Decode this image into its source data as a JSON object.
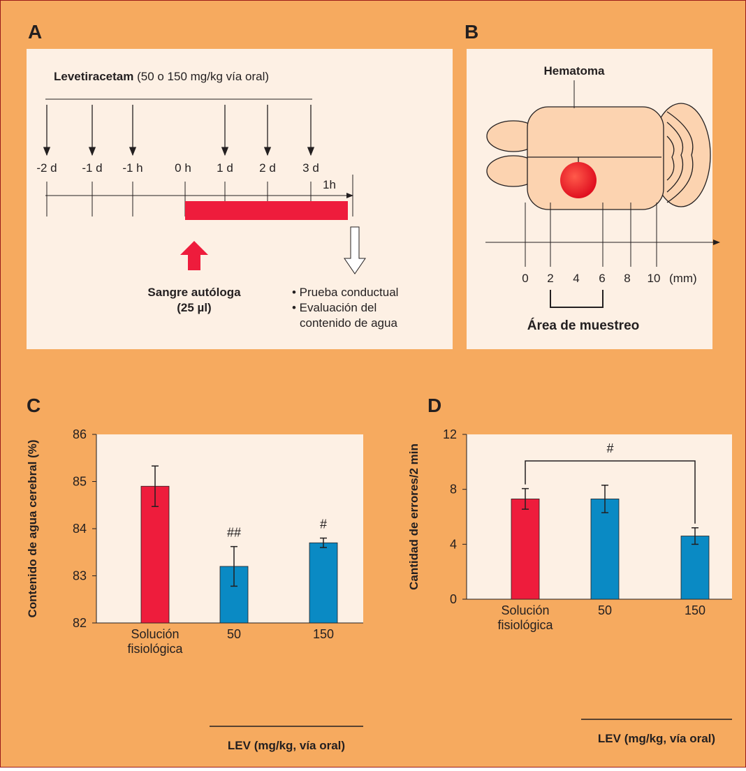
{
  "panel_a": {
    "label": "A",
    "drug_bold": "Levetiracetam",
    "drug_rest": "(50 o 150 mg/kg vía oral)",
    "timepoints": [
      "-2 d",
      "-1 d",
      "-1 h",
      "0 h",
      "1 d",
      "2 d",
      "3 d"
    ],
    "end_label": "1h",
    "blood": [
      "Sangre autóloga",
      "(25 µl)"
    ],
    "outcomes": [
      "• Prueba conductual",
      "• Evaluación del",
      "contenido de agua"
    ]
  },
  "panel_b": {
    "label": "B",
    "hematoma": "Hematoma",
    "ticks": [
      "0",
      "2",
      "4",
      "6",
      "8",
      "10"
    ],
    "unit": "(mm)",
    "sampling": "Área de muestreo"
  },
  "chart_data": [
    {
      "type": "bar",
      "panel_label": "C",
      "y_label": "Contenido de agua cerebral (%)",
      "x_label": "LEV (mg/kg, vía oral)",
      "categories": [
        "Solución fisiológica",
        "50",
        "150"
      ],
      "values": [
        84.9,
        83.2,
        83.7
      ],
      "errors": [
        0.43,
        0.42,
        0.1
      ],
      "colors": [
        "#ee1c3c",
        "#0a8ac4",
        "#0a8ac4"
      ],
      "ylim": [
        82,
        86
      ],
      "yticks": [
        82,
        83,
        84,
        85,
        86
      ],
      "annotations": [
        {
          "x": "50",
          "text": "##"
        },
        {
          "x": "150",
          "text": "#"
        }
      ]
    },
    {
      "type": "bar",
      "panel_label": "D",
      "y_label": "Cantidad de errores/2 min",
      "x_label": "LEV (mg/kg, vía oral)",
      "categories": [
        "Solución fisiológica",
        "50",
        "150"
      ],
      "values": [
        7.3,
        7.3,
        4.6
      ],
      "errors": [
        0.75,
        1.0,
        0.6
      ],
      "colors": [
        "#ee1c3c",
        "#0a8ac4",
        "#0a8ac4"
      ],
      "ylim": [
        0,
        12
      ],
      "yticks": [
        0,
        4,
        8,
        12
      ],
      "bracket": {
        "from": "Solución fisiológica",
        "to": "150",
        "text": "#"
      }
    }
  ]
}
